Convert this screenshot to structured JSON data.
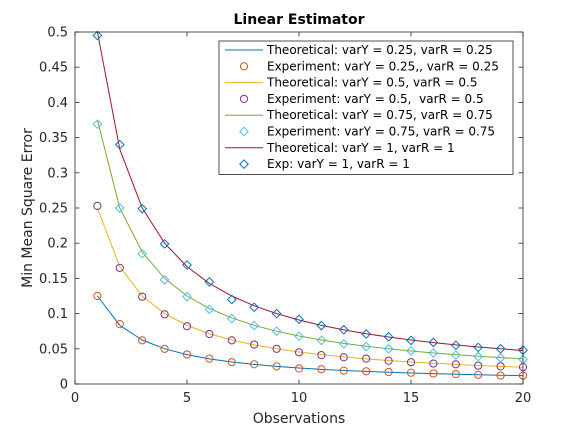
{
  "chart_data": {
    "type": "line",
    "title": "Linear Estimator",
    "xlabel": "Observations",
    "ylabel": "Min Mean Square Error",
    "xlim": [
      0,
      20
    ],
    "ylim": [
      0,
      0.5
    ],
    "xticks": [
      0,
      5,
      10,
      15,
      20
    ],
    "yticks": [
      0,
      0.05,
      0.1,
      0.15,
      0.2,
      0.25,
      0.3,
      0.35,
      0.4,
      0.45,
      0.5
    ],
    "xtick_labels": [
      "0",
      "5",
      "10",
      "15",
      "20"
    ],
    "ytick_labels": [
      "0",
      "0.05",
      "0.1",
      "0.15",
      "0.2",
      "0.25",
      "0.3",
      "0.35",
      "0.4",
      "0.45",
      "0.5"
    ],
    "grid": false,
    "legend_position": "top-right",
    "x": [
      1,
      2,
      3,
      4,
      5,
      6,
      7,
      8,
      9,
      10,
      11,
      12,
      13,
      14,
      15,
      16,
      17,
      18,
      19,
      20
    ],
    "series": [
      {
        "name": "Theoretical: varY = 0.25, varR = 0.25",
        "kind": "line",
        "color": "#0072BD",
        "values": [
          0.125,
          0.0833,
          0.0625,
          0.05,
          0.0417,
          0.0357,
          0.0313,
          0.0278,
          0.025,
          0.0227,
          0.0208,
          0.0192,
          0.0179,
          0.0167,
          0.0156,
          0.0147,
          0.0139,
          0.0132,
          0.0125,
          0.0119
        ]
      },
      {
        "name": "Experiment: varY = 0.25,, varR = 0.25",
        "kind": "marker",
        "marker": "circle",
        "color": "#D95319",
        "values": [
          0.125,
          0.085,
          0.062,
          0.05,
          0.042,
          0.036,
          0.031,
          0.028,
          0.025,
          0.022,
          0.021,
          0.019,
          0.018,
          0.017,
          0.016,
          0.015,
          0.014,
          0.013,
          0.012,
          0.012
        ]
      },
      {
        "name": "Theoretical: varY = 0.5, varR = 0.5",
        "kind": "line",
        "color": "#EDB120",
        "values": [
          0.25,
          0.1667,
          0.125,
          0.1,
          0.0833,
          0.0714,
          0.0625,
          0.0556,
          0.05,
          0.0455,
          0.0417,
          0.0385,
          0.0357,
          0.0333,
          0.0313,
          0.0294,
          0.0278,
          0.0263,
          0.025,
          0.0238
        ]
      },
      {
        "name": "Experiment: varY = 0.5,  varR = 0.5",
        "kind": "marker",
        "marker": "circle",
        "color": "#7E2F8E",
        "values": [
          0.253,
          0.165,
          0.124,
          0.099,
          0.082,
          0.071,
          0.062,
          0.056,
          0.05,
          0.045,
          0.041,
          0.038,
          0.036,
          0.033,
          0.031,
          0.029,
          0.028,
          0.026,
          0.025,
          0.024
        ]
      },
      {
        "name": "Theoretical: varY = 0.75, varR = 0.75",
        "kind": "line",
        "color": "#77AC30",
        "values": [
          0.375,
          0.25,
          0.1875,
          0.15,
          0.125,
          0.1071,
          0.0938,
          0.0833,
          0.075,
          0.0682,
          0.0625,
          0.0577,
          0.0536,
          0.05,
          0.0469,
          0.0441,
          0.0417,
          0.0395,
          0.0375,
          0.0357
        ]
      },
      {
        "name": "Experiment: varY = 0.75, varR = 0.75",
        "kind": "marker",
        "marker": "diamond",
        "color": "#4DBEEE",
        "values": [
          0.369,
          0.25,
          0.185,
          0.148,
          0.124,
          0.106,
          0.093,
          0.083,
          0.075,
          0.068,
          0.062,
          0.057,
          0.053,
          0.05,
          0.047,
          0.044,
          0.041,
          0.039,
          0.037,
          0.035
        ]
      },
      {
        "name": "Theoretical: varY = 1, varR = 1",
        "kind": "line",
        "color": "#A2142F",
        "values": [
          0.5,
          0.3333,
          0.25,
          0.2,
          0.1667,
          0.1429,
          0.125,
          0.1111,
          0.1,
          0.0909,
          0.0833,
          0.0769,
          0.0714,
          0.0667,
          0.0625,
          0.0588,
          0.0556,
          0.0526,
          0.05,
          0.0476
        ]
      },
      {
        "name": "Exp: varY = 1, varR = 1",
        "kind": "marker",
        "marker": "diamond",
        "color": "#0072BD",
        "values": [
          0.495,
          0.34,
          0.249,
          0.199,
          0.169,
          0.145,
          0.12,
          0.109,
          0.1,
          0.092,
          0.083,
          0.077,
          0.071,
          0.067,
          0.062,
          0.059,
          0.055,
          0.052,
          0.05,
          0.048
        ]
      }
    ]
  }
}
